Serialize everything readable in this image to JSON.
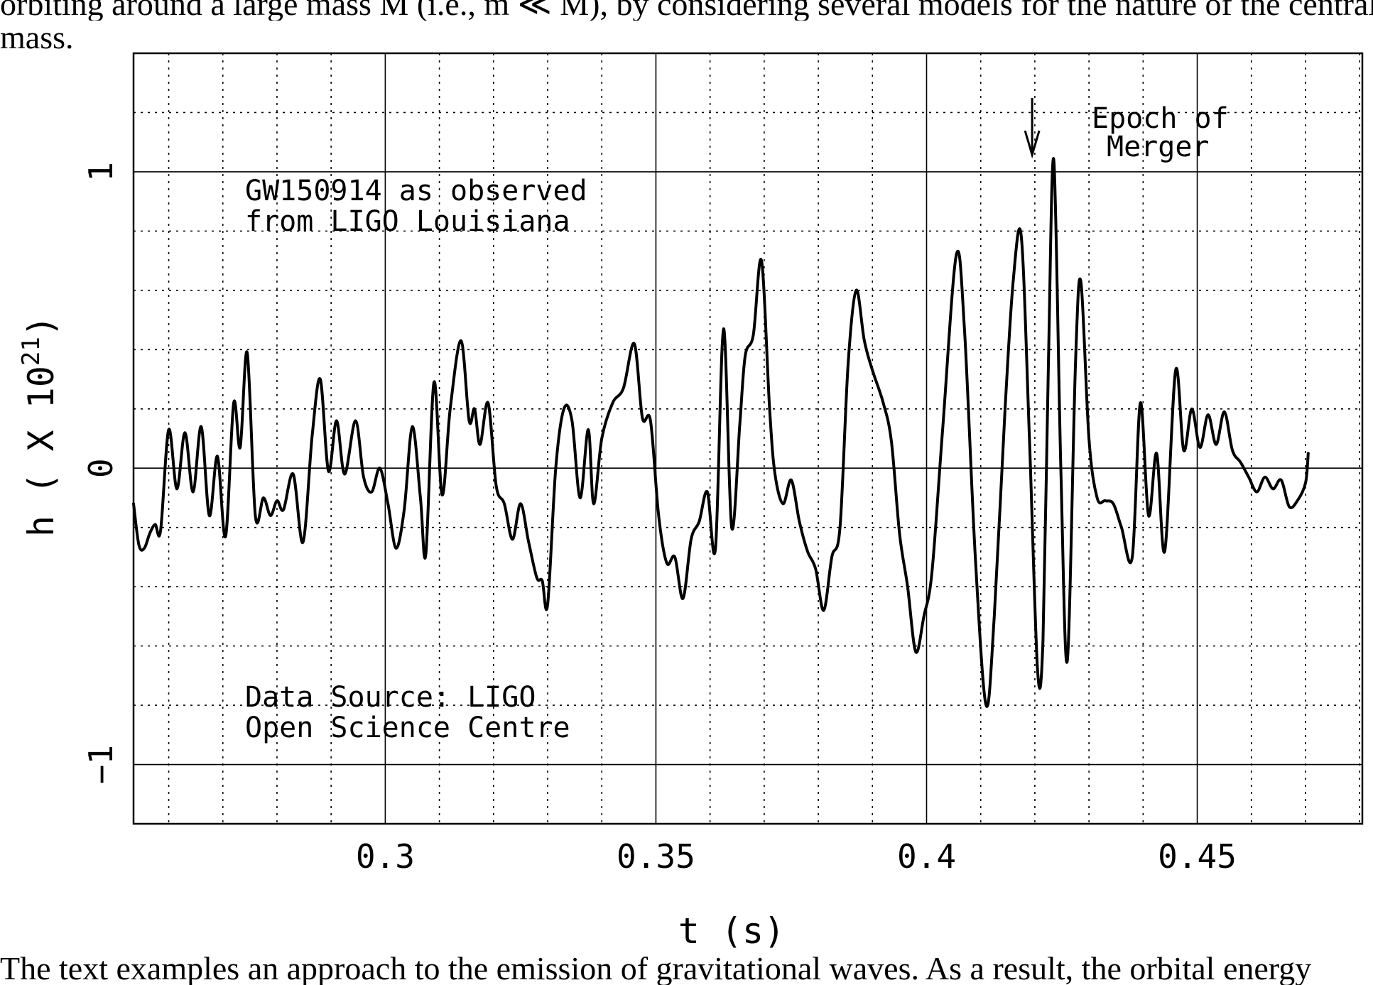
{
  "page": {
    "top_line": "orbiting around a large mass M (i.e., m ≪ M), by considering several models for the nature of the central",
    "top_line2": "mass.",
    "bottom_line": "The text examples an approach to the emission of gravitational waves. As a result, the orbital energy"
  },
  "chart_data": {
    "type": "line",
    "title": "",
    "xlabel": "t (s)",
    "ylabel_prefix": "h ( X 10",
    "ylabel_exponent": "21",
    "ylabel_suffix": ")",
    "xlim": [
      0.2535,
      0.4805
    ],
    "ylim": [
      -1.2,
      1.4
    ],
    "xticks": [
      0.3,
      0.35,
      0.4,
      0.45
    ],
    "xtick_labels": [
      "0.3",
      "0.35",
      "0.4",
      "0.45"
    ],
    "yticks": [
      -1,
      0,
      1
    ],
    "ytick_labels": [
      "−1",
      "0",
      "1"
    ],
    "grid": true,
    "annotations": {
      "event_line1": "GW150914 as observed",
      "event_line2": "from LIGO Louisiana",
      "source_line1": "Data Source: LIGO",
      "source_line2": "Open Science Centre",
      "merger_line1": "Epoch of",
      "merger_line2": "Merger",
      "merger_t": 0.4195
    },
    "series": [
      {
        "points": [
          [
            0.2535,
            -0.12
          ],
          [
            0.2545,
            -0.26
          ],
          [
            0.2555,
            -0.27
          ],
          [
            0.2565,
            -0.22
          ],
          [
            0.2575,
            -0.19
          ],
          [
            0.2585,
            -0.21
          ],
          [
            0.26,
            0.13
          ],
          [
            0.2615,
            -0.07
          ],
          [
            0.263,
            0.12
          ],
          [
            0.2645,
            -0.08
          ],
          [
            0.266,
            0.14
          ],
          [
            0.2675,
            -0.16
          ],
          [
            0.269,
            0.04
          ],
          [
            0.2705,
            -0.23
          ],
          [
            0.272,
            0.22
          ],
          [
            0.2732,
            0.07
          ],
          [
            0.2745,
            0.39
          ],
          [
            0.276,
            -0.16
          ],
          [
            0.2775,
            -0.1
          ],
          [
            0.2788,
            -0.16
          ],
          [
            0.28,
            -0.11
          ],
          [
            0.2812,
            -0.14
          ],
          [
            0.283,
            -0.02
          ],
          [
            0.2848,
            -0.25
          ],
          [
            0.2865,
            0.11
          ],
          [
            0.288,
            0.3
          ],
          [
            0.2895,
            -0.01
          ],
          [
            0.291,
            0.16
          ],
          [
            0.2925,
            -0.02
          ],
          [
            0.2945,
            0.16
          ],
          [
            0.296,
            -0.03
          ],
          [
            0.2975,
            -0.08
          ],
          [
            0.299,
            0.0
          ],
          [
            0.3005,
            -0.12
          ],
          [
            0.302,
            -0.27
          ],
          [
            0.3035,
            -0.14
          ],
          [
            0.305,
            0.14
          ],
          [
            0.3065,
            -0.1
          ],
          [
            0.3075,
            -0.29
          ],
          [
            0.309,
            0.29
          ],
          [
            0.3105,
            -0.09
          ],
          [
            0.312,
            0.2
          ],
          [
            0.314,
            0.43
          ],
          [
            0.3155,
            0.16
          ],
          [
            0.3165,
            0.2
          ],
          [
            0.3175,
            0.08
          ],
          [
            0.319,
            0.22
          ],
          [
            0.3205,
            -0.06
          ],
          [
            0.322,
            -0.12
          ],
          [
            0.3235,
            -0.24
          ],
          [
            0.325,
            -0.12
          ],
          [
            0.3265,
            -0.25
          ],
          [
            0.328,
            -0.37
          ],
          [
            0.329,
            -0.38
          ],
          [
            0.33,
            -0.46
          ],
          [
            0.3315,
            0.0
          ],
          [
            0.333,
            0.2
          ],
          [
            0.3345,
            0.16
          ],
          [
            0.336,
            -0.1
          ],
          [
            0.3375,
            0.13
          ],
          [
            0.3385,
            -0.12
          ],
          [
            0.34,
            0.1
          ],
          [
            0.342,
            0.22
          ],
          [
            0.344,
            0.27
          ],
          [
            0.346,
            0.42
          ],
          [
            0.3475,
            0.17
          ],
          [
            0.349,
            0.16
          ],
          [
            0.3505,
            -0.16
          ],
          [
            0.352,
            -0.32
          ],
          [
            0.3535,
            -0.3
          ],
          [
            0.355,
            -0.44
          ],
          [
            0.3565,
            -0.24
          ],
          [
            0.358,
            -0.18
          ],
          [
            0.3595,
            -0.08
          ],
          [
            0.361,
            -0.27
          ],
          [
            0.3625,
            0.47
          ],
          [
            0.364,
            -0.2
          ],
          [
            0.3655,
            0.15
          ],
          [
            0.3665,
            0.38
          ],
          [
            0.368,
            0.45
          ],
          [
            0.3695,
            0.7
          ],
          [
            0.371,
            0.2
          ],
          [
            0.372,
            -0.02
          ],
          [
            0.3735,
            -0.12
          ],
          [
            0.375,
            -0.04
          ],
          [
            0.3765,
            -0.18
          ],
          [
            0.378,
            -0.28
          ],
          [
            0.3795,
            -0.34
          ],
          [
            0.381,
            -0.48
          ],
          [
            0.3825,
            -0.3
          ],
          [
            0.384,
            -0.2
          ],
          [
            0.3855,
            0.35
          ],
          [
            0.387,
            0.6
          ],
          [
            0.3885,
            0.43
          ],
          [
            0.39,
            0.33
          ],
          [
            0.392,
            0.22
          ],
          [
            0.3935,
            0.09
          ],
          [
            0.395,
            -0.22
          ],
          [
            0.3965,
            -0.4
          ],
          [
            0.398,
            -0.62
          ],
          [
            0.3995,
            -0.5
          ],
          [
            0.401,
            -0.35
          ],
          [
            0.403,
            0.14
          ],
          [
            0.4055,
            0.72
          ],
          [
            0.407,
            0.47
          ],
          [
            0.409,
            -0.3
          ],
          [
            0.411,
            -0.8
          ],
          [
            0.4125,
            -0.5
          ],
          [
            0.4145,
            0.2
          ],
          [
            0.416,
            0.63
          ],
          [
            0.4175,
            0.78
          ],
          [
            0.419,
            0.1
          ],
          [
            0.4205,
            -0.68
          ],
          [
            0.4215,
            -0.58
          ],
          [
            0.4225,
            0.35
          ],
          [
            0.4235,
            1.04
          ],
          [
            0.4248,
            0.0
          ],
          [
            0.426,
            -0.65
          ],
          [
            0.4275,
            0.35
          ],
          [
            0.4285,
            0.63
          ],
          [
            0.43,
            0.1
          ],
          [
            0.4315,
            -0.1
          ],
          [
            0.433,
            -0.11
          ],
          [
            0.4345,
            -0.12
          ],
          [
            0.436,
            -0.2
          ],
          [
            0.438,
            -0.3
          ],
          [
            0.4395,
            0.22
          ],
          [
            0.441,
            -0.16
          ],
          [
            0.4425,
            0.05
          ],
          [
            0.444,
            -0.28
          ],
          [
            0.446,
            0.33
          ],
          [
            0.4475,
            0.06
          ],
          [
            0.449,
            0.2
          ],
          [
            0.4505,
            0.07
          ],
          [
            0.452,
            0.18
          ],
          [
            0.4535,
            0.08
          ],
          [
            0.455,
            0.19
          ],
          [
            0.4565,
            0.06
          ],
          [
            0.458,
            0.02
          ],
          [
            0.4595,
            -0.03
          ],
          [
            0.461,
            -0.08
          ],
          [
            0.4625,
            -0.03
          ],
          [
            0.464,
            -0.07
          ],
          [
            0.4655,
            -0.04
          ],
          [
            0.467,
            -0.13
          ],
          [
            0.4685,
            -0.11
          ],
          [
            0.47,
            -0.05
          ],
          [
            0.4705,
            0.05
          ]
        ]
      }
    ]
  }
}
